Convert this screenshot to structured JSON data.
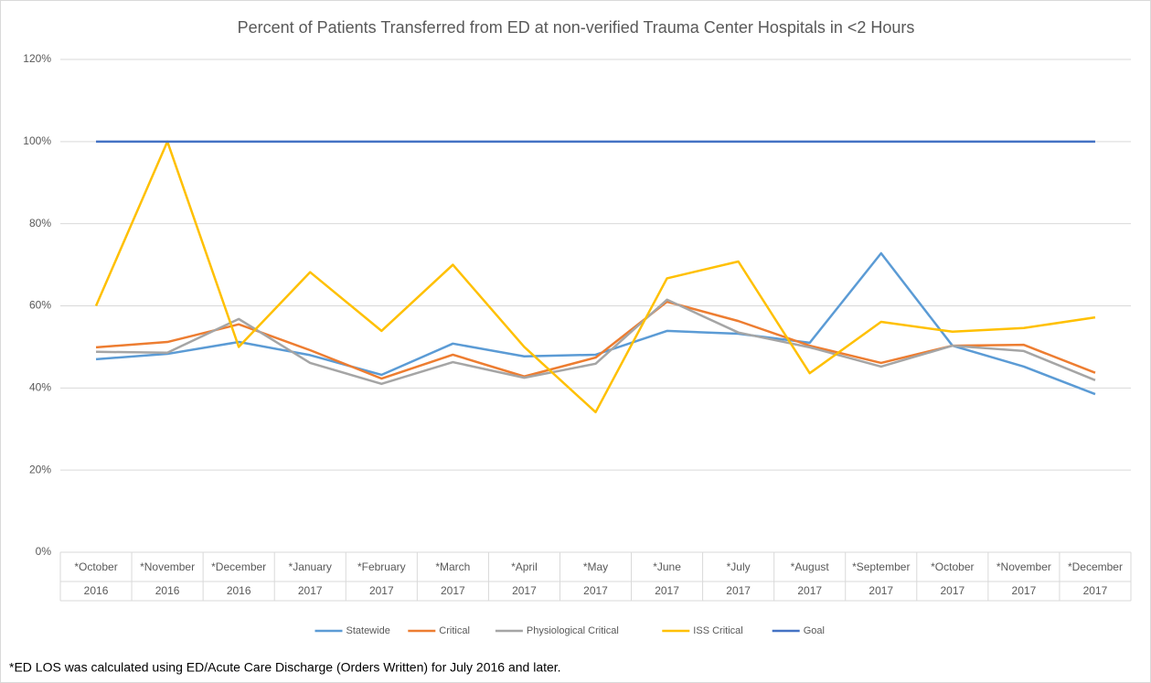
{
  "chart_data": {
    "type": "line",
    "title": "Percent of Patients Transferred from ED at non-verified Trauma Center Hospitals in <2 Hours",
    "categories": [
      [
        "*October",
        "2016"
      ],
      [
        "*November",
        "2016"
      ],
      [
        "*December",
        "2016"
      ],
      [
        "*January",
        "2017"
      ],
      [
        "*February",
        "2017"
      ],
      [
        "*March",
        "2017"
      ],
      [
        "*April",
        "2017"
      ],
      [
        "*May",
        "2017"
      ],
      [
        "*June",
        "2017"
      ],
      [
        "*July",
        "2017"
      ],
      [
        "*August",
        "2017"
      ],
      [
        "*September",
        "2017"
      ],
      [
        "*October",
        "2017"
      ],
      [
        "*November",
        "2017"
      ],
      [
        "*December",
        "2017"
      ]
    ],
    "series": [
      {
        "name": "Statewide",
        "color": "#5b9bd5",
        "values": [
          47,
          48.3,
          51.2,
          48,
          43.2,
          50.8,
          47.7,
          48.1,
          53.9,
          53.2,
          51,
          72.8,
          50.3,
          45.2,
          38.5
        ]
      },
      {
        "name": "Critical",
        "color": "#ed7d31",
        "values": [
          49.9,
          51.2,
          55.5,
          49.2,
          42.3,
          48.1,
          42.8,
          47.4,
          61,
          56.3,
          50.3,
          46.1,
          50.3,
          50.5,
          43.7
        ]
      },
      {
        "name": "Physiological Critical",
        "color": "#a5a5a5",
        "values": [
          48.8,
          48.6,
          56.8,
          46.1,
          41,
          46.3,
          42.5,
          45.9,
          61.5,
          53.5,
          49.9,
          45.2,
          50.3,
          49,
          41.9
        ]
      },
      {
        "name": "ISS Critical",
        "color": "#ffc000",
        "values": [
          60,
          100,
          50,
          68.2,
          53.9,
          70,
          50,
          34.1,
          66.7,
          70.8,
          43.6,
          56.1,
          53.7,
          54.6,
          57.2
        ]
      },
      {
        "name": "Goal",
        "color": "#4472c4",
        "values": [
          100,
          100,
          100,
          100,
          100,
          100,
          100,
          100,
          100,
          100,
          100,
          100,
          100,
          100,
          100
        ]
      }
    ],
    "ylim": [
      0,
      120
    ],
    "yticks": [
      {
        "value": 0,
        "label": "0%"
      },
      {
        "value": 20,
        "label": "20%"
      },
      {
        "value": 40,
        "label": "40%"
      },
      {
        "value": 60,
        "label": "60%"
      },
      {
        "value": 80,
        "label": "80%"
      },
      {
        "value": 100,
        "label": "100%"
      },
      {
        "value": 120,
        "label": "120%"
      }
    ],
    "grid": true,
    "legend": "bottom",
    "footnote": "*ED LOS was calculated using ED/Acute Care Discharge (Orders Written) for July 2016 and later."
  }
}
